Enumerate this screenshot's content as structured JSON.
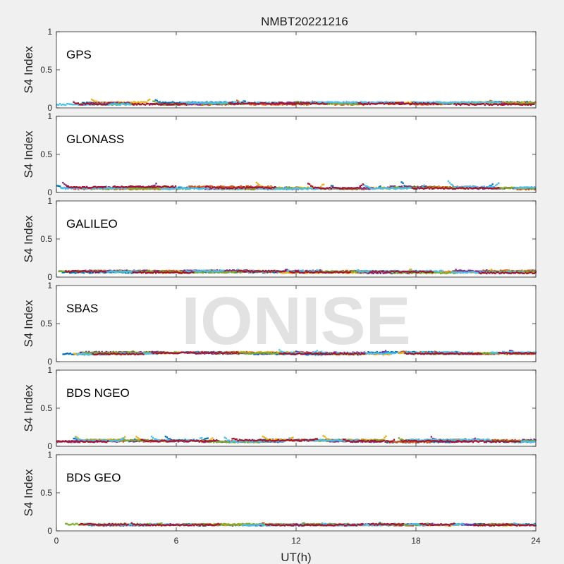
{
  "chart_data": {
    "type": "scatter",
    "title": "NMBT20221216",
    "xlabel": "UT(h)",
    "xlim": [
      0,
      24
    ],
    "x_ticks": [
      "0",
      "6",
      "12",
      "18",
      "24"
    ],
    "ylabel": "S4 Index",
    "ylim": [
      0,
      1
    ],
    "y_ticks": [
      "0",
      "0.5",
      "1"
    ],
    "watermark": "IONISE",
    "panels": [
      {
        "label": "GPS",
        "baseline": 0.06,
        "spread": 0.03,
        "bump": 0.05
      },
      {
        "label": "GLONASS",
        "baseline": 0.06,
        "spread": 0.03,
        "bump": 0.08
      },
      {
        "label": "GALILEO",
        "baseline": 0.07,
        "spread": 0.03,
        "bump": 0.05
      },
      {
        "label": "SBAS",
        "baseline": 0.11,
        "spread": 0.025,
        "bump": 0.04
      },
      {
        "label": "BDS NGEO",
        "baseline": 0.07,
        "spread": 0.03,
        "bump": 0.06
      },
      {
        "label": "BDS GEO",
        "baseline": 0.08,
        "spread": 0.012,
        "bump": 0.02
      }
    ],
    "series_colors": [
      "#0072BD",
      "#D95319",
      "#EDB120",
      "#7E2F8E",
      "#77AC30",
      "#4DBEEE",
      "#A2142F"
    ]
  }
}
